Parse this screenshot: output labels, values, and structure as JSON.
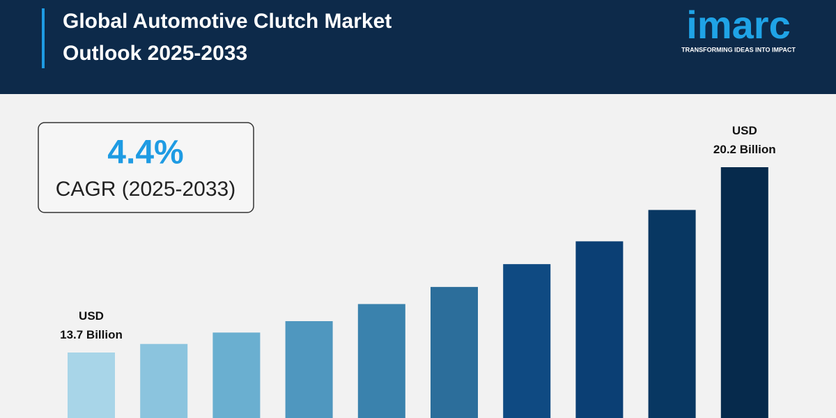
{
  "logo": {
    "name": "imarc",
    "tagline": "TRANSFORMING IDEAS INTO IMPACT"
  },
  "chart_data": {
    "type": "bar",
    "title": "Global Automotive Clutch Market Outlook 2025-2033",
    "cagr_value": "4.4%",
    "cagr_label": "CAGR (2025-2033)",
    "values": [
      13.7,
      14.0,
      14.4,
      14.8,
      15.4,
      16.0,
      16.8,
      17.6,
      18.7,
      20.2
    ],
    "value_labels": [
      "USD\n13.7 Billion",
      null,
      null,
      null,
      null,
      null,
      null,
      null,
      null,
      "USD\n20.2 Billion"
    ],
    "colors": [
      "#a8d5e8",
      "#8bc4de",
      "#6aafd0",
      "#4f97bf",
      "#3a82ad",
      "#2c6e9b",
      "#0f4a82",
      "#0b3f74",
      "#083762",
      "#062a4c"
    ]
  }
}
